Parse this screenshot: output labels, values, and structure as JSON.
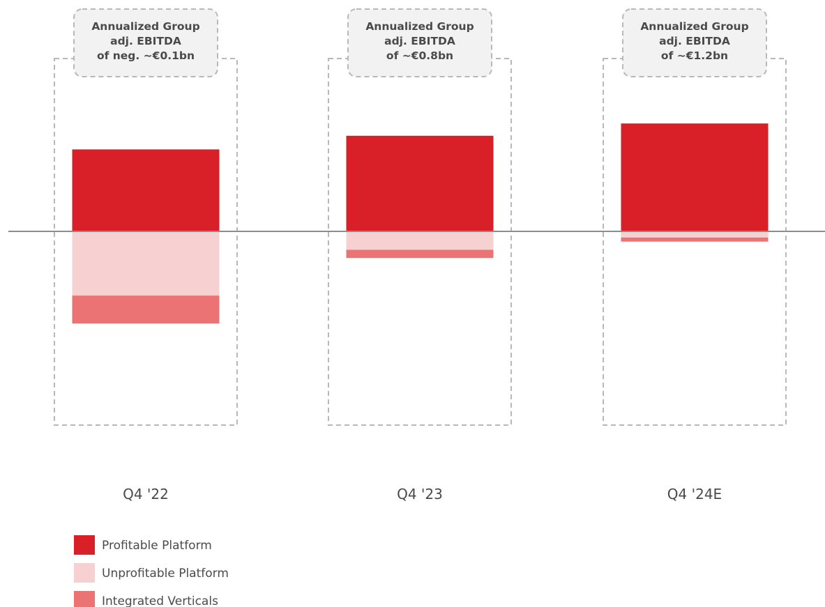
{
  "chart_data": {
    "type": "bar",
    "stacked": true,
    "categories": [
      "Q4 '22",
      "Q4 '23",
      "Q4 '24E"
    ],
    "series": [
      {
        "name": "Profitable Platform",
        "color": "#d91f28",
        "values": [
          1.2,
          1.4,
          1.58
        ]
      },
      {
        "name": "Unprofitable Platform",
        "color": "#f7d0d1",
        "values": [
          -0.94,
          -0.27,
          -0.09
        ]
      },
      {
        "name": "Integrated Verticals",
        "color": "#ec7373",
        "values": [
          -0.41,
          -0.12,
          -0.06
        ]
      }
    ],
    "annotations": [
      {
        "category": "Q4 '22",
        "lines": [
          "Annualized Group",
          "adj. EBITDA",
          "of neg. ~€0.1bn"
        ]
      },
      {
        "category": "Q4 '23",
        "lines": [
          "Annualized Group",
          "adj. EBITDA",
          "of ~€0.8bn"
        ]
      },
      {
        "category": "Q4 '24E",
        "lines": [
          "Annualized Group",
          "adj. EBITDA",
          "of ~€1.2bn"
        ]
      }
    ],
    "ylim": [
      -2.8,
      2.4
    ],
    "grid": false,
    "axes_visible": false,
    "zero_line": true,
    "legend_position": "bottom-left"
  }
}
